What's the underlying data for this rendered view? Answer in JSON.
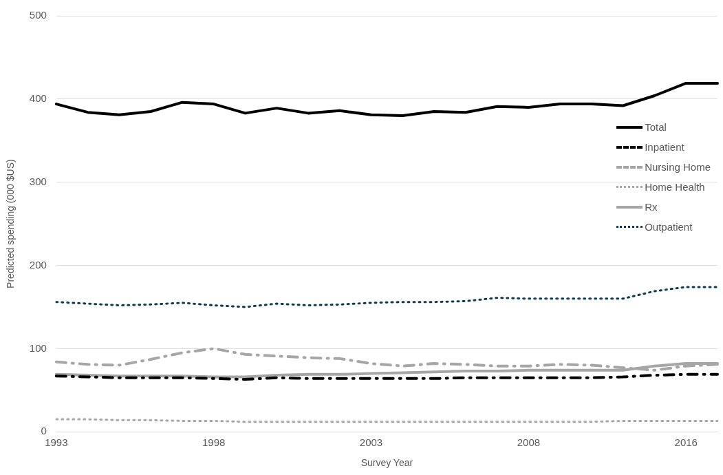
{
  "chart_data": {
    "type": "line",
    "xlabel": "Survey Year",
    "ylabel": "Predicted spending (000 $US)",
    "categories": [
      "1993",
      null,
      null,
      null,
      null,
      "1998",
      null,
      null,
      null,
      null,
      "2003",
      null,
      null,
      null,
      null,
      "2008",
      null,
      null,
      null,
      null,
      "2016",
      null
    ],
    "ylim": [
      0,
      500
    ],
    "yticks": [
      0,
      100,
      200,
      300,
      400,
      500
    ],
    "grid": "y",
    "legend": "right",
    "marker": "none",
    "series": [
      {
        "name": "Total",
        "color": "#000000",
        "line_style": "solid",
        "values": [
          394,
          384,
          381,
          385,
          396,
          394,
          383,
          389,
          383,
          386,
          381,
          380,
          385,
          384,
          391,
          390,
          394,
          394,
          392,
          404,
          419,
          419
        ]
      },
      {
        "name": "Inpatient",
        "color": "#000000",
        "line_style": "dashed",
        "values": [
          67,
          66,
          65,
          65,
          65,
          64,
          63,
          65,
          64,
          64,
          64,
          64,
          64,
          65,
          65,
          65,
          65,
          65,
          66,
          68,
          69,
          69
        ]
      },
      {
        "name": "Nursing Home",
        "color": "#a6a6a6",
        "line_style": "dashed",
        "values": [
          84,
          81,
          80,
          87,
          95,
          100,
          93,
          91,
          89,
          88,
          82,
          79,
          82,
          81,
          79,
          79,
          81,
          80,
          77,
          74,
          79,
          81
        ]
      },
      {
        "name": "Home Health",
        "color": "#a6a6a6",
        "line_style": "dotted",
        "values": [
          15,
          15,
          14,
          14,
          13,
          13,
          12,
          12,
          12,
          12,
          12,
          12,
          12,
          12,
          12,
          12,
          12,
          12,
          13,
          13,
          13,
          13
        ]
      },
      {
        "name": "Rx",
        "color": "#a6a6a6",
        "line_style": "solid",
        "values": [
          69,
          68,
          67,
          67,
          67,
          66,
          66,
          68,
          69,
          69,
          70,
          71,
          72,
          73,
          73,
          74,
          74,
          74,
          74,
          79,
          82,
          82
        ]
      },
      {
        "name": "Outpatient",
        "color": "#0b3a52",
        "line_style": "dotted",
        "values": [
          156,
          154,
          152,
          153,
          155,
          152,
          150,
          154,
          152,
          153,
          155,
          156,
          156,
          157,
          161,
          160,
          160,
          160,
          160,
          169,
          174,
          174
        ]
      }
    ]
  }
}
